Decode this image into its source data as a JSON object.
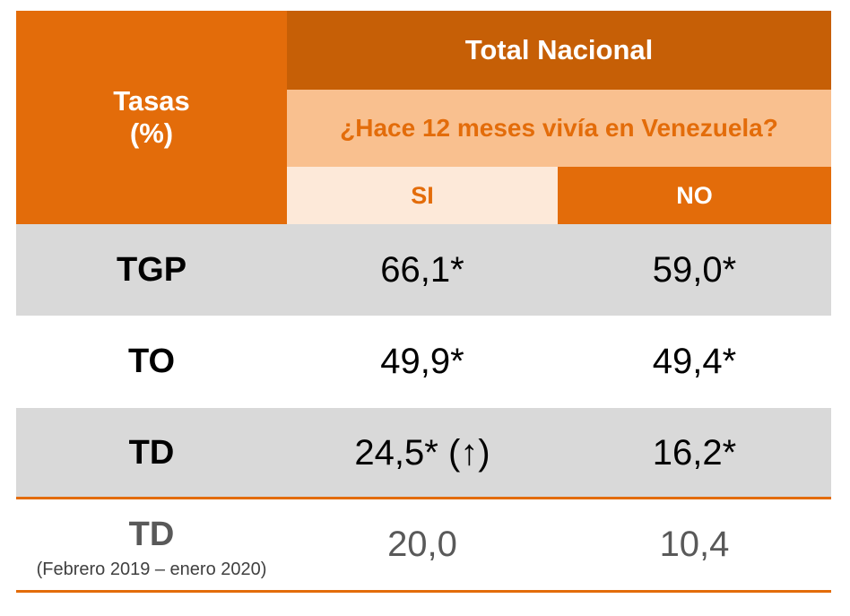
{
  "header": {
    "rate_label": [
      "Tasas",
      "(%)"
    ],
    "title": "Total Nacional",
    "question": "¿Hace 12 meses vivía en Venezuela?",
    "columns": [
      "SI",
      "NO"
    ]
  },
  "table": {
    "rows": [
      {
        "label": "TGP",
        "values": [
          "66,1*",
          "59,0*"
        ]
      },
      {
        "label": "TO",
        "values": [
          "49,9*",
          "49,4*"
        ]
      },
      {
        "label": "TD",
        "values": [
          "24,5* (↑)",
          "16,2*"
        ]
      },
      {
        "label": "TD",
        "note": "(Febrero 2019 – enero 2020)",
        "values": [
          "20,0",
          "10,4"
        ]
      }
    ]
  }
}
